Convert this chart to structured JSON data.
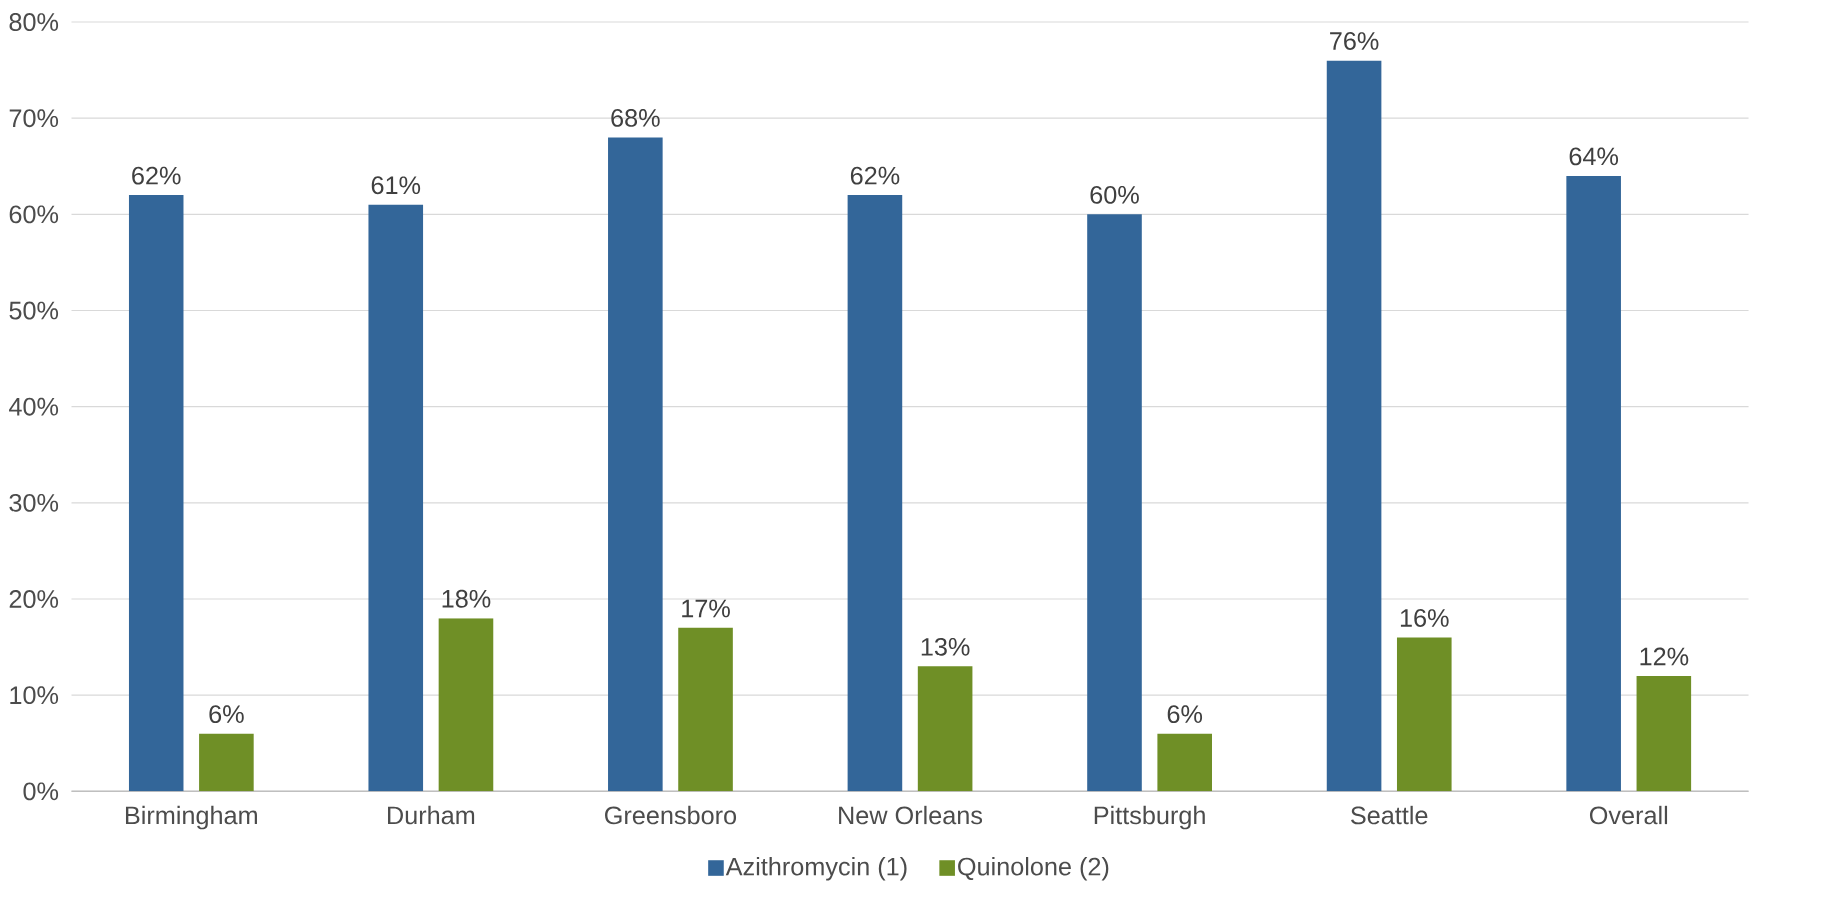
{
  "chart_data": {
    "type": "bar",
    "categories": [
      "Birmingham",
      "Durham",
      "Greensboro",
      "New Orleans",
      "Pittsburgh",
      "Seattle",
      "Overall"
    ],
    "series": [
      {
        "name": "Azithromycin (1)",
        "color": "#336699",
        "values": [
          62,
          61,
          68,
          62,
          60,
          76,
          64
        ],
        "value_labels": [
          "62%",
          "61%",
          "68%",
          "62%",
          "60%",
          "76%",
          "64%"
        ]
      },
      {
        "name": "Quinolone (2)",
        "color": "#6f8f26",
        "values": [
          6,
          18,
          17,
          13,
          6,
          16,
          12
        ],
        "value_labels": [
          "6%",
          "18%",
          "17%",
          "13%",
          "6%",
          "16%",
          "12%"
        ]
      }
    ],
    "ylim": [
      0,
      80
    ],
    "yticks": [
      {
        "value": 0,
        "label": "0%"
      },
      {
        "value": 10,
        "label": "10%"
      },
      {
        "value": 20,
        "label": "20%"
      },
      {
        "value": 30,
        "label": "30%"
      },
      {
        "value": 40,
        "label": "40%"
      },
      {
        "value": 50,
        "label": "50%"
      },
      {
        "value": 60,
        "label": "60%"
      },
      {
        "value": 70,
        "label": "70%"
      },
      {
        "value": 80,
        "label": "80%"
      }
    ],
    "grid": "y",
    "legend": "bottom"
  }
}
